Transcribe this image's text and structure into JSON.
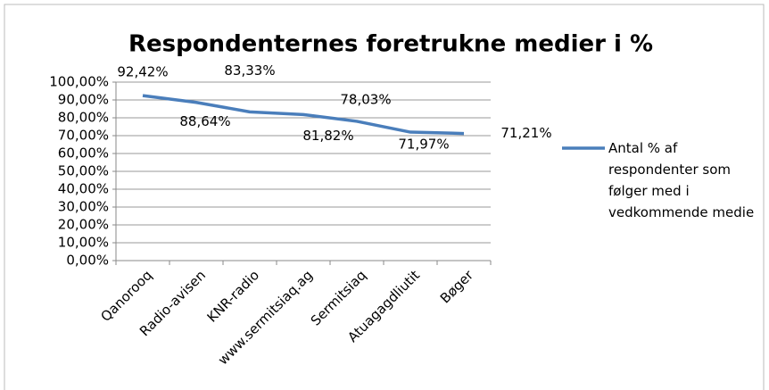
{
  "chart_data": {
    "type": "line",
    "title": "Respondenternes foretrukne medier i %",
    "categories": [
      "Qanorooq",
      "Radio-avisen",
      "KNR-radio",
      "www.sermitsiaq.ag",
      "Sermitsiaq",
      "Atuagagdliutit",
      "Bøger"
    ],
    "series": [
      {
        "name": "Antal % af respondenter som følger med i vedkommende medie",
        "color": "#4a7ebb",
        "values": [
          92.42,
          88.64,
          83.33,
          81.82,
          78.03,
          71.97,
          71.21
        ],
        "value_labels": [
          "92,42%",
          "88,64%",
          "83,33%",
          "81,82%",
          "78,03%",
          "71,97%",
          "71,21%"
        ]
      }
    ],
    "ylim": [
      0,
      100
    ],
    "yticks": [
      {
        "value": 0,
        "label": "0,00%"
      },
      {
        "value": 10,
        "label": "10,00%"
      },
      {
        "value": 20,
        "label": "20,00%"
      },
      {
        "value": 30,
        "label": "30,00%"
      },
      {
        "value": 40,
        "label": "40,00%"
      },
      {
        "value": 50,
        "label": "50,00%"
      },
      {
        "value": 60,
        "label": "60,00%"
      },
      {
        "value": 70,
        "label": "70,00%"
      },
      {
        "value": 80,
        "label": "80,00%"
      },
      {
        "value": 90,
        "label": "90,00%"
      },
      {
        "value": 100,
        "label": "100,00%"
      }
    ],
    "grid": true,
    "legend": "right"
  }
}
